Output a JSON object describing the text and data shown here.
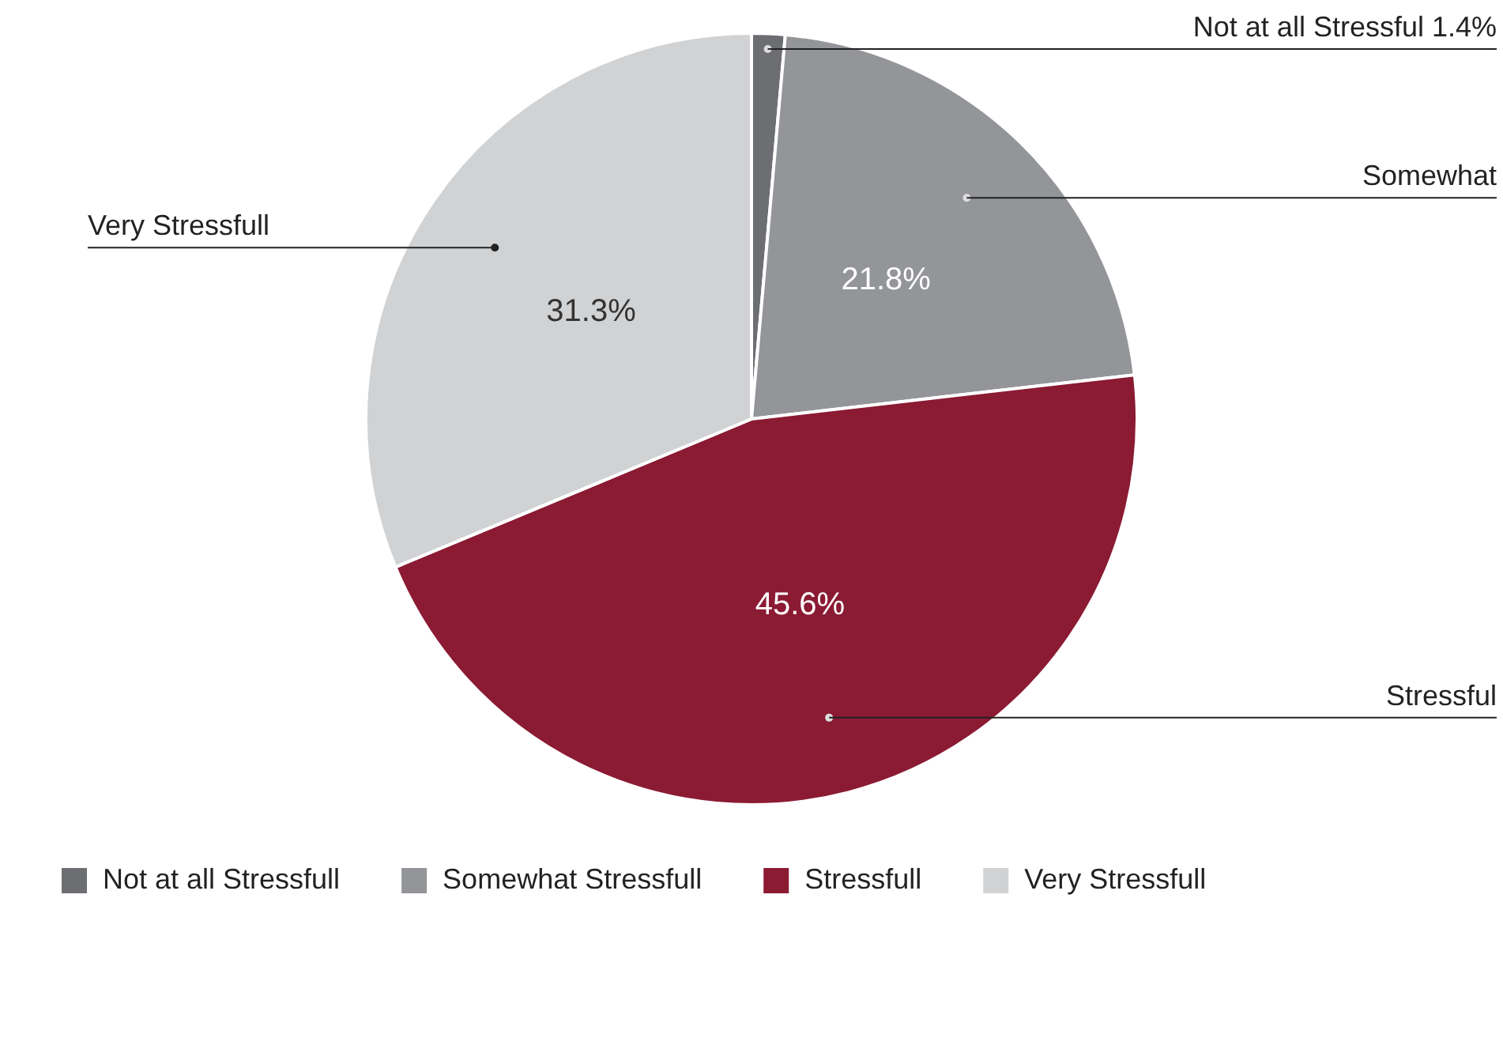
{
  "chart_data": {
    "type": "pie",
    "categories": [
      "Not at all Stressfull",
      "Somewhat Stressfull",
      "Stressfull",
      "Very Stressfull"
    ],
    "values": [
      1.4,
      21.8,
      45.6,
      31.3
    ],
    "colors": [
      "#6d6e71",
      "#939598",
      "#8b1a33",
      "#d1d2d4"
    ],
    "value_labels": [
      null,
      "21.8%",
      "45.6%",
      "31.3%"
    ],
    "annotations": [
      "Not at all Stressful 1.4%",
      "Somewhat",
      "Stressful",
      "Very Stressfull"
    ],
    "legend": "bottom left"
  }
}
